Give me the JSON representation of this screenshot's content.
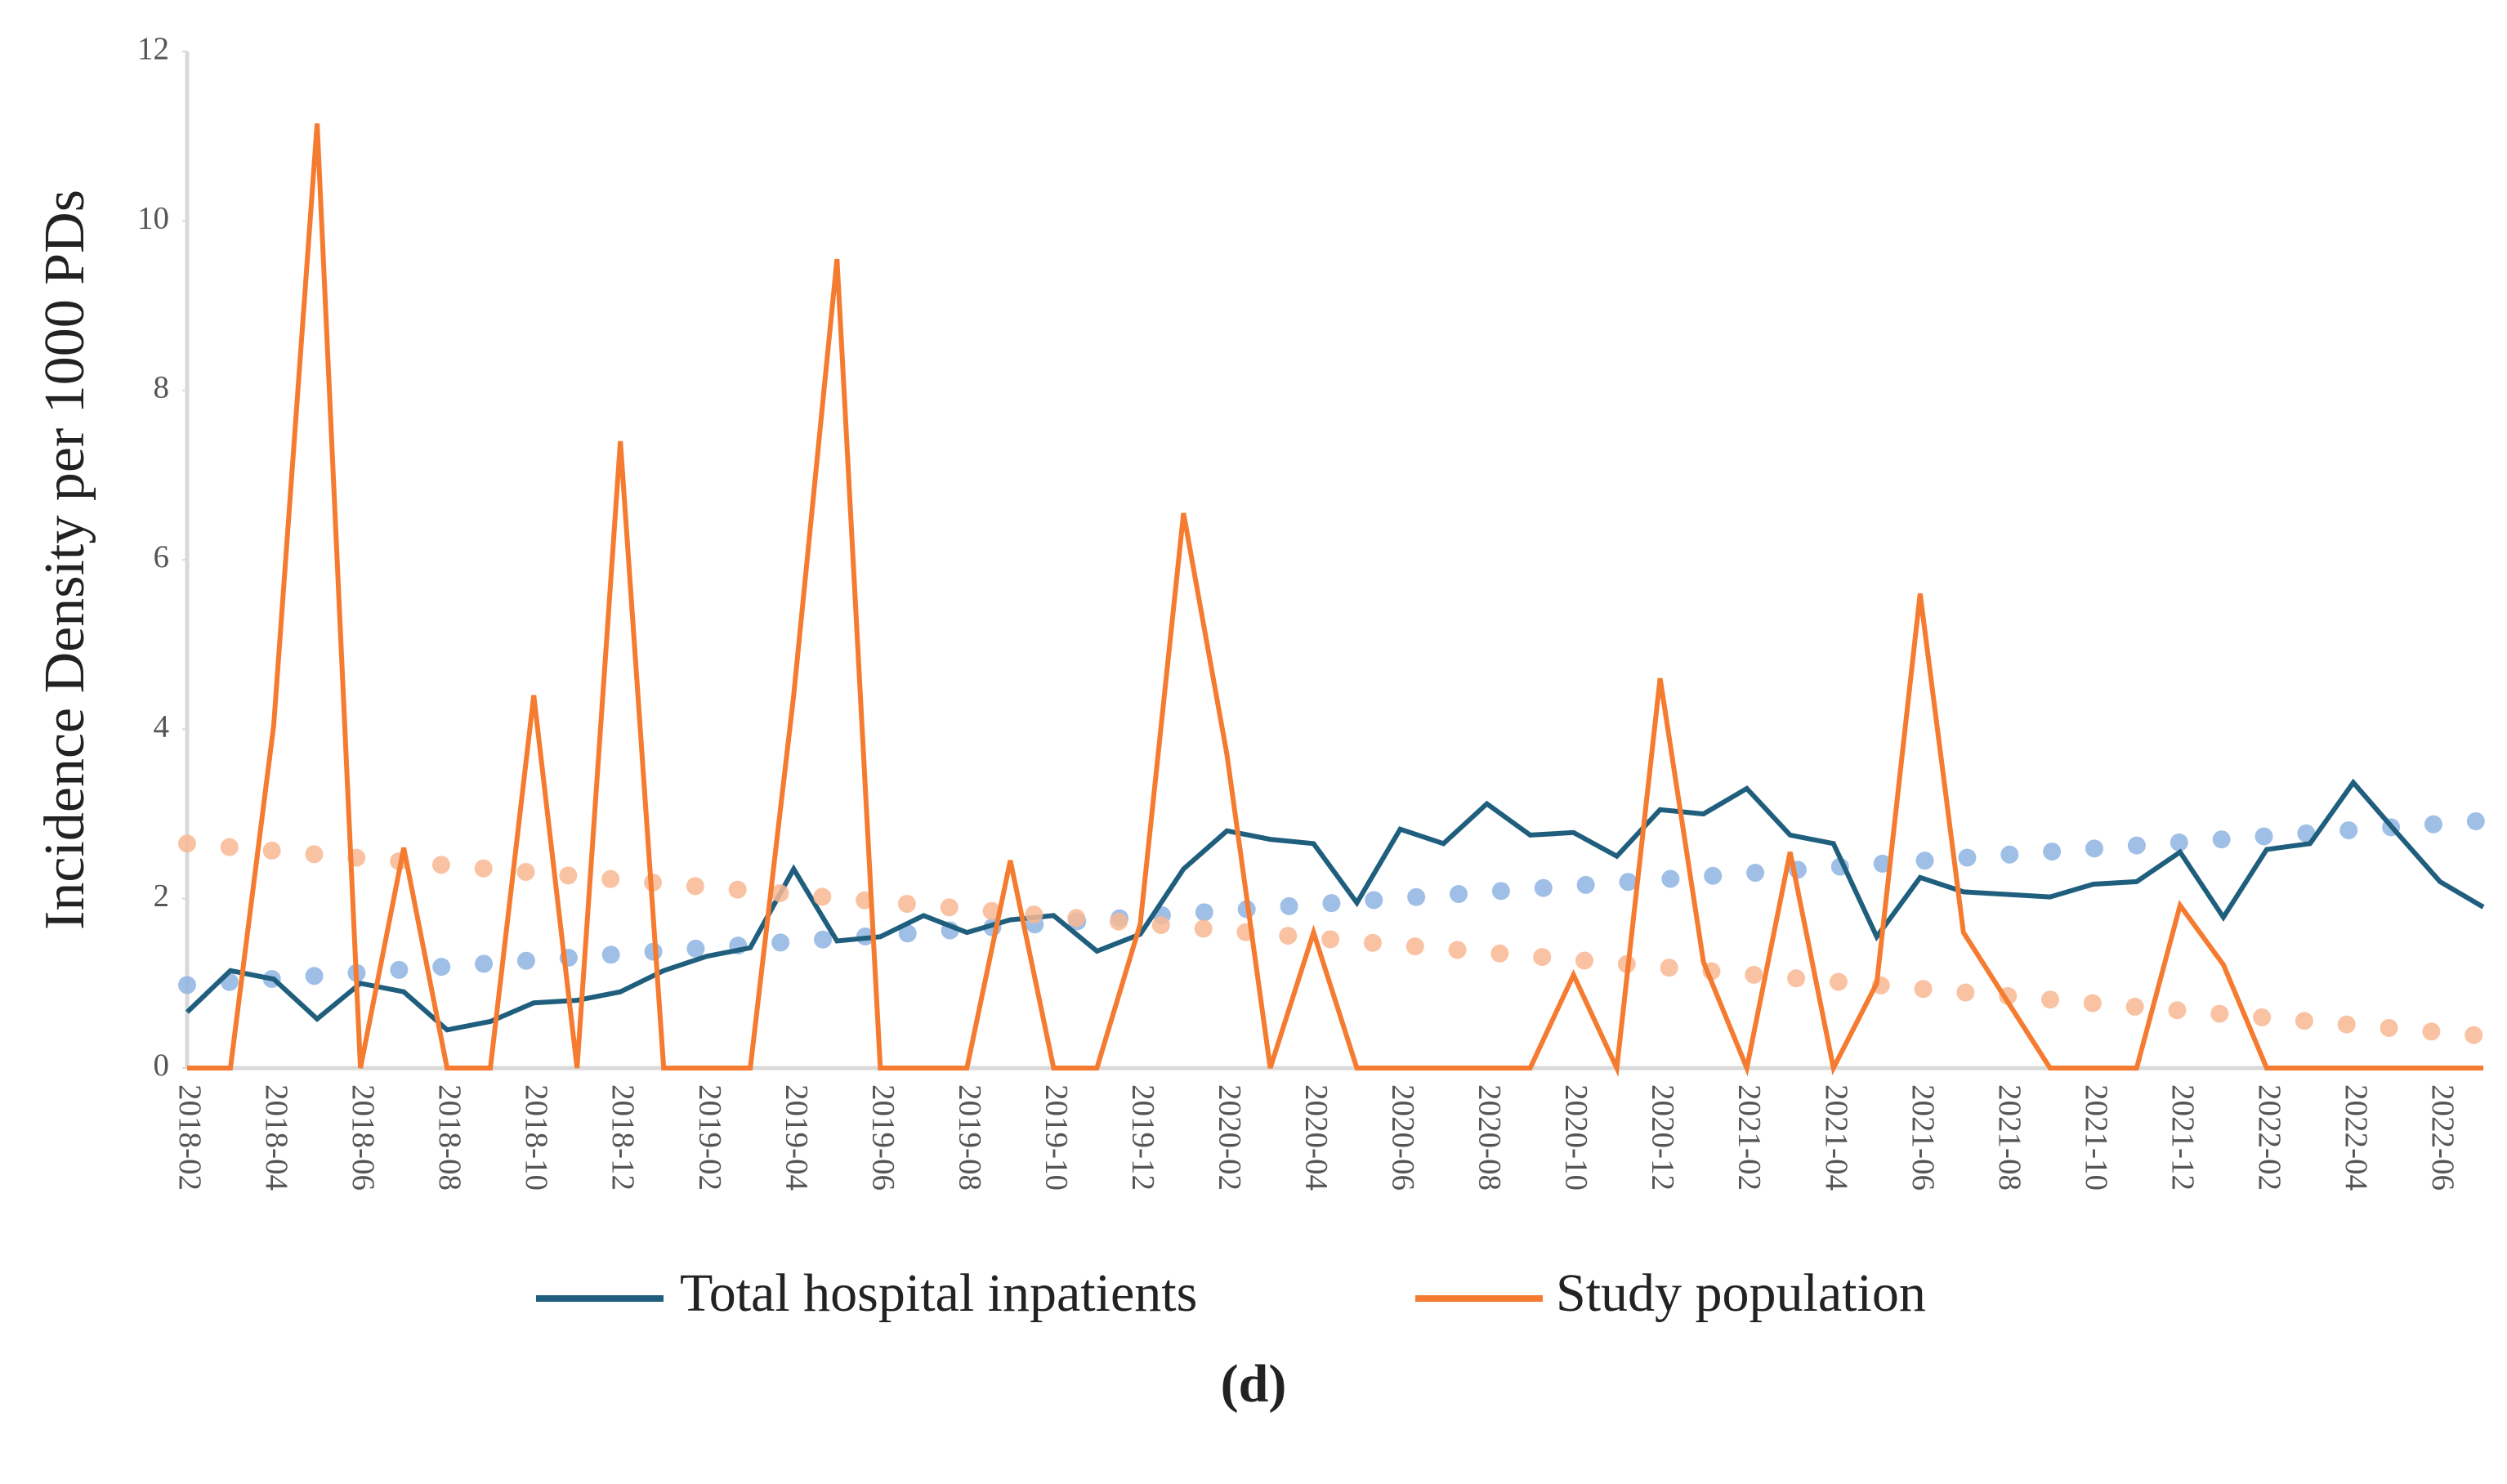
{
  "chart_data": {
    "type": "line",
    "ylabel": "Incidence Density per 1000 PDs",
    "caption": "(d)",
    "categories": [
      "2018-02",
      null,
      "2018-04",
      null,
      "2018-06",
      null,
      "2018-08",
      null,
      "2018-10",
      null,
      "2018-12",
      null,
      "2019-02",
      null,
      "2019-04",
      null,
      "2019-06",
      null,
      "2019-08",
      null,
      "2019-10",
      null,
      "2019-12",
      null,
      "2020-02",
      null,
      "2020-04",
      null,
      "2020-06",
      null,
      "2020-08",
      null,
      "2020-10",
      null,
      "2020-12",
      null,
      "2021-02",
      null,
      "2021-04",
      null,
      "2021-06",
      null,
      "2021-08",
      null,
      "2021-10",
      null,
      "2021-12",
      null,
      "2022-02",
      null,
      "2022-04",
      null,
      "2022-06",
      null
    ],
    "series": [
      {
        "name": "Total hospital inpatients",
        "color": "#1f5f7d",
        "trend_color": "#8fb4e3",
        "trend": [
          0.98,
          2.92
        ],
        "values": [
          0.66,
          1.15,
          1.05,
          0.58,
          1.0,
          0.9,
          0.45,
          0.55,
          0.77,
          0.8,
          0.9,
          1.15,
          1.32,
          1.42,
          2.35,
          1.5,
          1.55,
          1.8,
          1.6,
          1.75,
          1.8,
          1.38,
          1.58,
          2.35,
          2.8,
          2.7,
          2.65,
          1.95,
          2.82,
          2.65,
          3.12,
          2.75,
          2.78,
          2.5,
          3.05,
          3.0,
          3.3,
          2.75,
          2.65,
          1.55,
          2.25,
          2.08,
          2.05,
          2.02,
          2.17,
          2.2,
          2.55,
          1.78,
          2.58,
          2.65,
          3.37,
          2.78,
          2.2,
          1.9
        ]
      },
      {
        "name": "Study population",
        "color": "#f47b30",
        "trend_color": "#f8b993",
        "trend": [
          2.65,
          0.38
        ],
        "values": [
          0,
          0,
          4.05,
          11.15,
          0,
          2.6,
          0,
          0,
          4.4,
          0,
          7.4,
          0,
          0,
          0,
          4.4,
          9.55,
          0,
          0,
          0,
          2.45,
          0,
          0,
          1.7,
          6.55,
          3.7,
          0,
          1.6,
          0,
          0,
          0,
          0,
          0,
          1.1,
          0,
          4.6,
          1.25,
          0,
          2.55,
          0,
          1.0,
          5.6,
          1.6,
          0.8,
          0,
          0,
          0,
          1.92,
          1.22,
          0,
          0,
          0,
          0,
          0,
          0
        ]
      }
    ],
    "ylim": [
      0,
      12
    ],
    "yticks": [
      0,
      2,
      4,
      6,
      8,
      10,
      12
    ],
    "legend": "bottom"
  }
}
